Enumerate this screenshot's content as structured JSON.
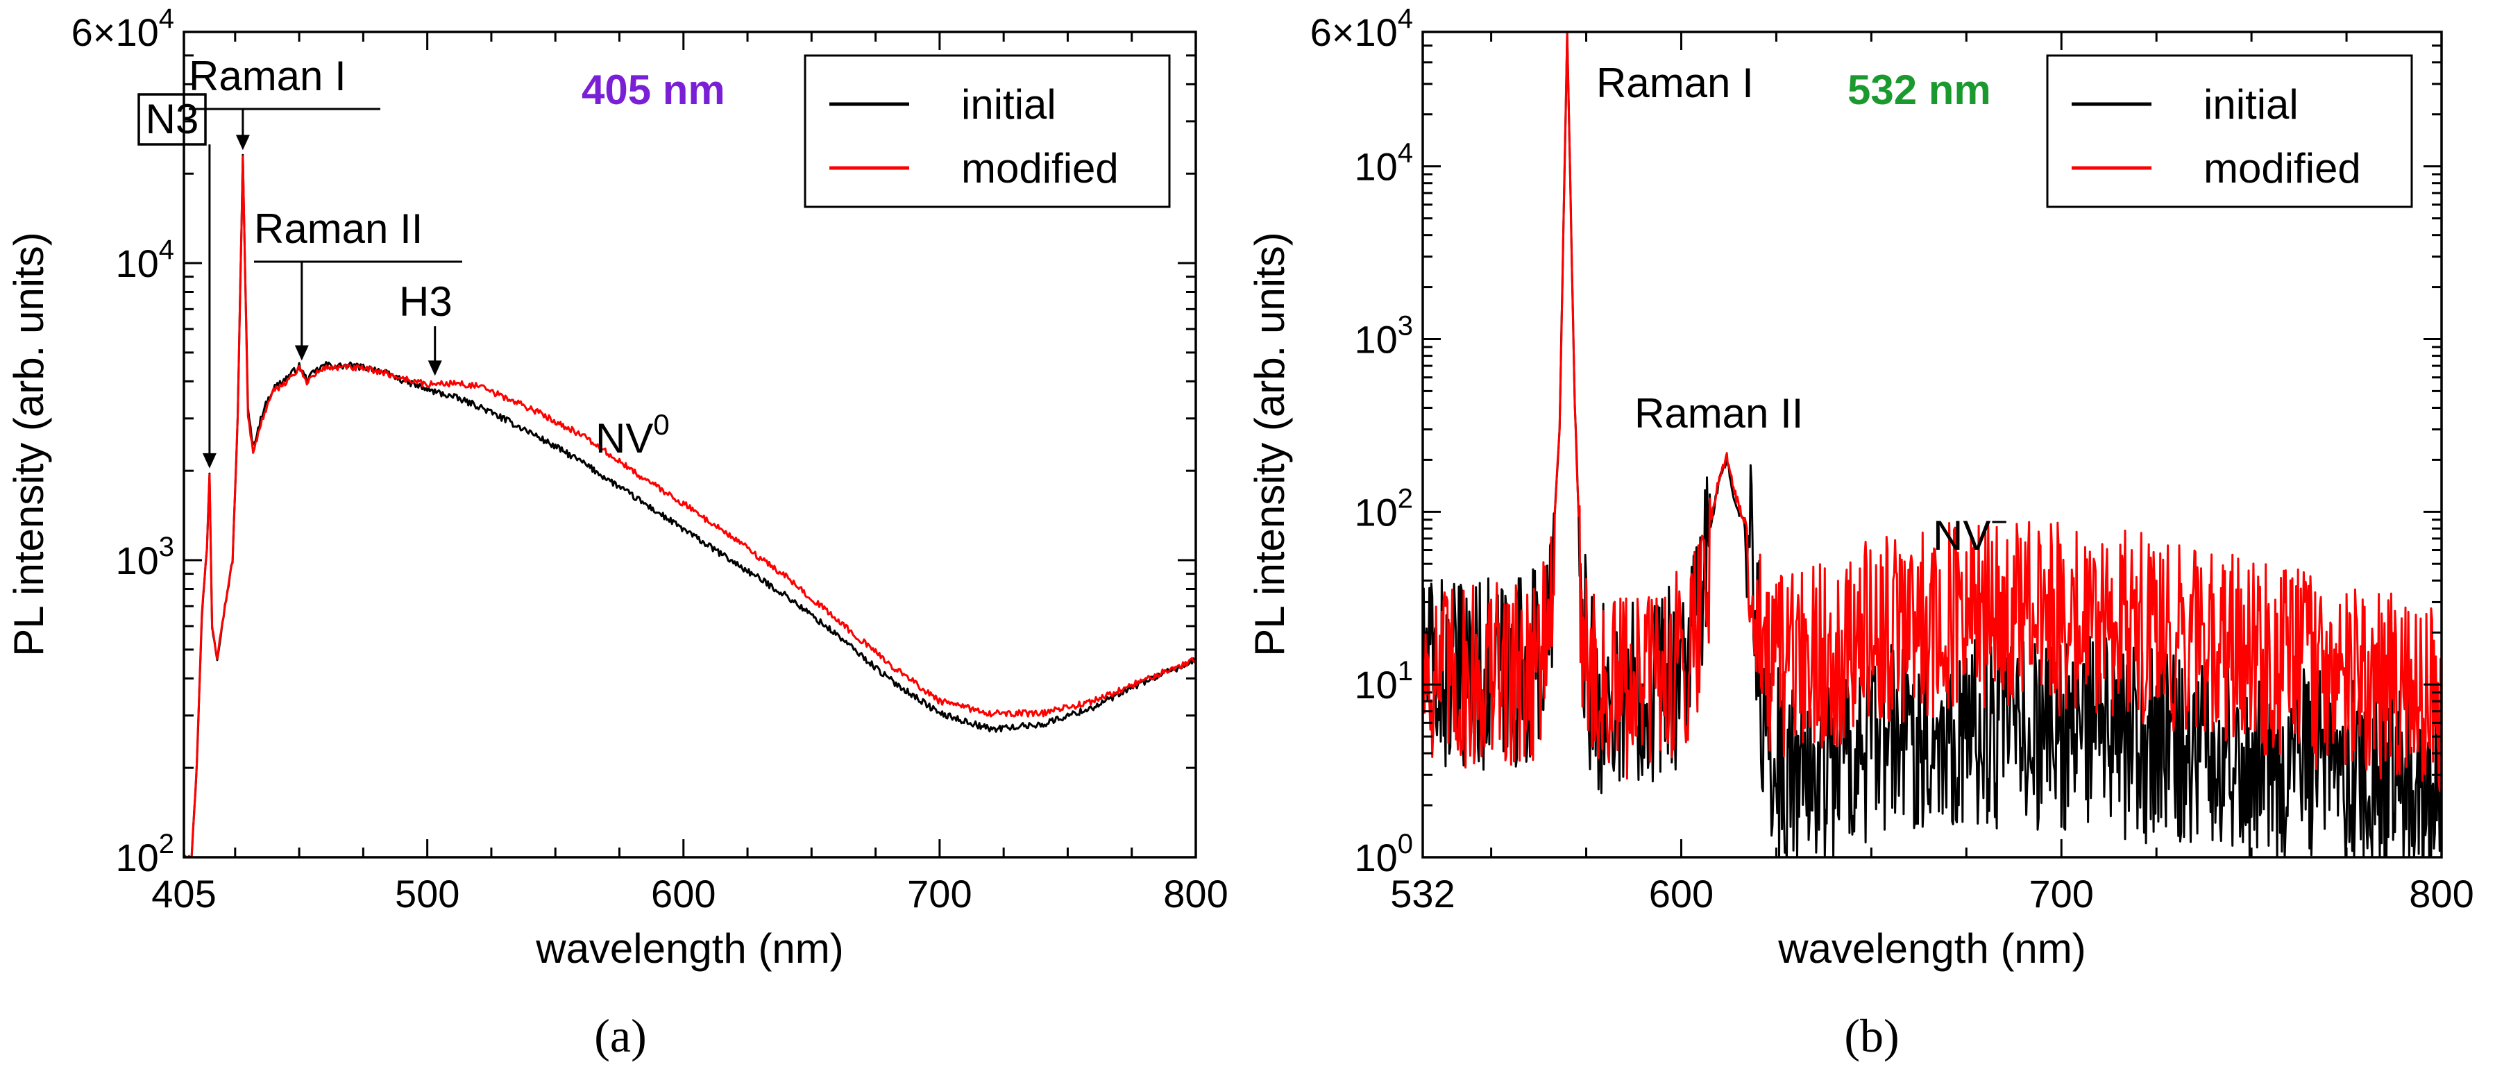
{
  "colors": {
    "initial": "#000000",
    "modified": "#ff0000",
    "laser_405": "#7a1fd6",
    "laser_532": "#1a9a2e"
  },
  "chart_data": [
    {
      "type": "line",
      "panel": "(a)",
      "laser_label": "405 nm",
      "xlabel": "wavelength (nm)",
      "ylabel": "PL intensity (arb. units)",
      "xlim": [
        405,
        800
      ],
      "ylim": [
        100,
        60000
      ],
      "yscale": "log",
      "grid": false,
      "legend_position": "top-right",
      "x_ticks": [
        {
          "v": 405,
          "label": "405"
        },
        {
          "v": 500,
          "label": "500"
        },
        {
          "v": 600,
          "label": "600"
        },
        {
          "v": 700,
          "label": "700"
        },
        {
          "v": 800,
          "label": "800"
        }
      ],
      "y_ticks": [
        {
          "v": 100,
          "base": "10",
          "exp": "2"
        },
        {
          "v": 1000,
          "base": "10",
          "exp": "3"
        },
        {
          "v": 10000,
          "base": "10",
          "exp": "4"
        },
        {
          "v": 60000,
          "base": "6×10",
          "exp": "4"
        }
      ],
      "annotations": {
        "n3": "N3",
        "raman1": "Raman I",
        "raman2": "Raman II",
        "h3": "H3",
        "nv_base": "NV",
        "nv_sup": "0"
      },
      "annotation_targets": {
        "n3": {
          "x": 415,
          "y": 1950
        },
        "raman1": {
          "x": 428,
          "y": 23000
        },
        "raman2": {
          "x": 451,
          "y": 4500
        },
        "h3": {
          "x": 503,
          "y": 4000
        },
        "nv": {
          "x": 560,
          "y": 2700
        }
      },
      "series": [
        {
          "name": "initial",
          "x": [
            408,
            410,
            412,
            414,
            415,
            416,
            418,
            420,
            424,
            426,
            428,
            430,
            432,
            436,
            440,
            445,
            450,
            453,
            456,
            460,
            465,
            470,
            480,
            490,
            500,
            510,
            520,
            540,
            560,
            580,
            600,
            620,
            640,
            660,
            680,
            700,
            720,
            740,
            760,
            780,
            800
          ],
          "y": [
            100,
            200,
            650,
            1100,
            1950,
            600,
            470,
            620,
            1000,
            3000,
            23000,
            3200,
            2400,
            3200,
            3800,
            4100,
            4500,
            4050,
            4300,
            4550,
            4500,
            4520,
            4400,
            4050,
            3750,
            3550,
            3300,
            2700,
            2150,
            1650,
            1270,
            980,
            760,
            560,
            400,
            305,
            270,
            280,
            320,
            390,
            460
          ]
        },
        {
          "name": "modified",
          "x": [
            408,
            410,
            412,
            414,
            415,
            416,
            418,
            420,
            424,
            426,
            428,
            430,
            432,
            436,
            440,
            445,
            450,
            453,
            456,
            460,
            465,
            470,
            480,
            490,
            500,
            510,
            520,
            540,
            560,
            580,
            600,
            620,
            640,
            660,
            680,
            700,
            720,
            740,
            760,
            780,
            800
          ],
          "y": [
            100,
            200,
            650,
            1100,
            1950,
            600,
            470,
            620,
            1000,
            3000,
            23000,
            3100,
            2300,
            3050,
            3700,
            4000,
            4400,
            4000,
            4200,
            4450,
            4450,
            4450,
            4350,
            4100,
            3900,
            3950,
            3850,
            3250,
            2650,
            2000,
            1550,
            1180,
            880,
            630,
            450,
            335,
            305,
            305,
            335,
            395,
            465
          ]
        }
      ]
    },
    {
      "type": "line",
      "panel": "(b)",
      "laser_label": "532 nm",
      "xlabel": "wavelength (nm)",
      "ylabel": "PL intensity (arb. units)",
      "xlim": [
        532,
        800
      ],
      "ylim": [
        1,
        60000
      ],
      "yscale": "log",
      "grid": false,
      "legend_position": "top-right",
      "x_ticks": [
        {
          "v": 532,
          "label": "532"
        },
        {
          "v": 600,
          "label": "600"
        },
        {
          "v": 700,
          "label": "700"
        },
        {
          "v": 800,
          "label": "800"
        }
      ],
      "y_ticks": [
        {
          "v": 1,
          "base": "10",
          "exp": "0"
        },
        {
          "v": 10,
          "base": "10",
          "exp": "1"
        },
        {
          "v": 100,
          "base": "10",
          "exp": "2"
        },
        {
          "v": 1000,
          "base": "10",
          "exp": "3"
        },
        {
          "v": 10000,
          "base": "10",
          "exp": "4"
        },
        {
          "v": 60000,
          "base": "6×10",
          "exp": "4"
        }
      ],
      "annotations": {
        "raman1": "Raman I",
        "raman2": "Raman II",
        "nv_base": "NV",
        "nv_sup": "−"
      },
      "series": [
        {
          "name": "initial",
          "x": [
            532,
            540,
            550,
            560,
            565,
            568,
            570,
            572,
            574,
            576,
            580,
            585,
            590,
            595,
            600,
            605,
            608,
            610,
            612,
            614,
            616,
            618,
            620,
            622,
            630,
            640,
            650,
            660,
            670,
            680,
            690,
            700,
            710,
            720,
            730,
            740,
            750,
            760,
            770,
            780,
            790,
            800
          ],
          "y": [
            15,
            12,
            13,
            14,
            20,
            300,
            60000,
            400,
            25,
            12,
            9,
            10,
            11,
            12,
            14,
            30,
            90,
            150,
            200,
            120,
            90,
            70,
            25,
            5,
            3,
            4,
            5,
            6,
            6,
            6,
            6,
            6,
            6,
            5,
            5,
            5,
            4,
            4,
            4,
            3,
            3,
            3
          ]
        },
        {
          "name": "modified",
          "x": [
            532,
            540,
            550,
            560,
            565,
            568,
            570,
            572,
            574,
            576,
            580,
            585,
            590,
            595,
            600,
            605,
            608,
            610,
            612,
            614,
            616,
            618,
            620,
            622,
            630,
            640,
            650,
            660,
            670,
            680,
            690,
            700,
            710,
            720,
            730,
            740,
            750,
            760,
            770,
            780,
            790,
            800
          ],
          "y": [
            15,
            12,
            13,
            14,
            20,
            300,
            60000,
            400,
            25,
            12,
            10,
            11,
            12,
            13,
            15,
            32,
            95,
            160,
            210,
            130,
            95,
            75,
            30,
            12,
            15,
            18,
            22,
            25,
            27,
            28,
            28,
            27,
            26,
            24,
            22,
            20,
            17,
            15,
            13,
            12,
            11,
            10
          ]
        }
      ]
    }
  ]
}
